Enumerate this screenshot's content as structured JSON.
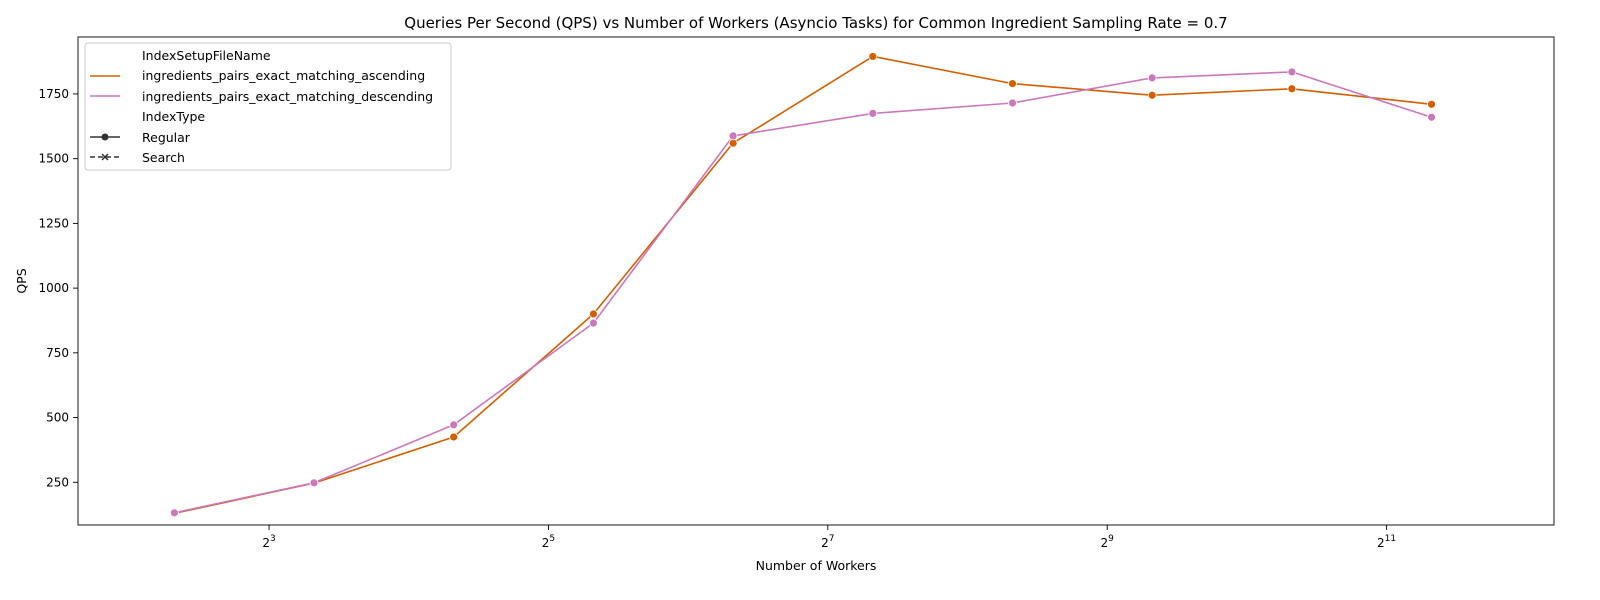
{
  "chart_data": {
    "type": "line",
    "title": "Queries Per Second (QPS) vs Number of Workers (Asyncio Tasks) for Common Ingredient Sampling Rate = 0.7",
    "xlabel": "Number of Workers",
    "ylabel": "QPS",
    "xscale": "log2",
    "xlim": [
      3.1,
      4700
    ],
    "ylim": [
      85,
      1970
    ],
    "x_ticks": [
      {
        "value": 8,
        "base": "2",
        "exp": "3"
      },
      {
        "value": 32,
        "base": "2",
        "exp": "5"
      },
      {
        "value": 128,
        "base": "2",
        "exp": "7"
      },
      {
        "value": 512,
        "base": "2",
        "exp": "9"
      },
      {
        "value": 2048,
        "base": "2",
        "exp": "11"
      }
    ],
    "y_ticks": [
      {
        "value": 250,
        "label": "250"
      },
      {
        "value": 500,
        "label": "500"
      },
      {
        "value": 750,
        "label": "750"
      },
      {
        "value": 1000,
        "label": "1000"
      },
      {
        "value": 1250,
        "label": "1250"
      },
      {
        "value": 1500,
        "label": "1500"
      },
      {
        "value": 1750,
        "label": "1750"
      }
    ],
    "x": [
      5,
      10,
      20,
      40,
      80,
      160,
      320,
      640,
      1280,
      2560
    ],
    "series": [
      {
        "name": "ingredients_pairs_exact_matching_ascending",
        "color": "#d55e00",
        "values": [
          130,
          247,
          425,
          900,
          1560,
          1895,
          1790,
          1745,
          1770,
          1710
        ]
      },
      {
        "name": "ingredients_pairs_exact_matching_descending",
        "color": "#cc78bc",
        "values": [
          132,
          248,
          472,
          865,
          1588,
          1675,
          1715,
          1812,
          1835,
          1660
        ]
      }
    ],
    "legend": {
      "placement": "top-left",
      "hue_title": "IndexSetupFileName",
      "style_title": "IndexType",
      "style_entries": [
        "Regular",
        "Search"
      ]
    },
    "grid": false
  }
}
